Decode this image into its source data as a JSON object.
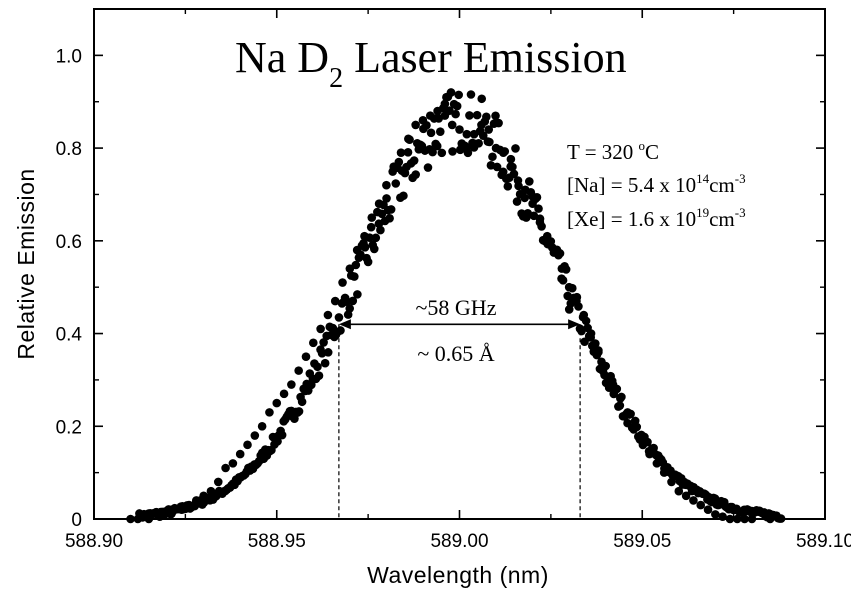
{
  "chart_data": {
    "type": "scatter",
    "title": {
      "main": "Na D",
      "sub": "2",
      "rest": " Laser Emission"
    },
    "xlabel": "Wavelength (nm)",
    "ylabel": "Relative Emission",
    "xlim": [
      588.9,
      589.1
    ],
    "ylim": [
      0,
      1.1
    ],
    "xticks": [
      "588.90",
      "588.95",
      "589.00",
      "589.05",
      "589.10"
    ],
    "xtick_values": [
      588.9,
      588.95,
      589.0,
      589.05,
      589.1
    ],
    "yticks": [
      "0",
      "0.2",
      "0.4",
      "0.6",
      "0.8",
      "1.0"
    ],
    "ytick_values": [
      0,
      0.2,
      0.4,
      0.6,
      0.8,
      1.0
    ],
    "grid": false,
    "annotations": {
      "temperature": {
        "text": "T = 320 ",
        "sup": "o",
        "tail": "C"
      },
      "na_density": {
        "text": "[Na] = 5.4 x 10",
        "sup": "14",
        "tail": "cm",
        "sup2": "-3"
      },
      "xe_density": {
        "text": "[Xe] = 1.6 x 10",
        "sup": "19",
        "tail": "cm",
        "sup2": "-3"
      },
      "fwhm_ghz": "~58 GHz",
      "fwhm_angstrom": "~ 0.65 Å",
      "fwhm_left_x": 588.967,
      "fwhm_right_x": 589.033,
      "fwhm_y": 0.42
    },
    "series": [
      {
        "marker_color": "#000000",
        "profile": {
          "center": 589.0,
          "peak": 0.86,
          "fwhm": 0.066
        },
        "x": [
          588.9,
          588.905,
          588.91,
          588.915,
          588.918,
          588.921,
          588.924,
          588.926,
          588.928,
          588.93,
          588.932,
          588.934,
          588.936,
          588.938,
          588.94,
          588.942,
          588.944,
          588.946,
          588.948,
          588.95,
          588.952,
          588.954,
          588.956,
          588.958,
          588.96,
          588.962,
          588.964,
          588.966,
          588.968,
          588.97,
          588.972,
          588.974,
          588.976,
          588.978,
          588.98,
          588.982,
          588.984,
          588.986,
          588.988,
          588.99,
          588.992,
          588.994,
          588.996,
          588.998,
          589.0,
          589.002,
          589.004,
          589.006,
          589.008,
          589.01,
          589.012,
          589.014,
          589.016,
          589.018,
          589.02,
          589.022,
          589.024,
          589.026,
          589.028,
          589.03,
          589.032,
          589.034,
          589.036,
          589.038,
          589.04,
          589.042,
          589.044,
          589.046,
          589.048,
          589.05,
          589.052,
          589.054,
          589.056,
          589.058,
          589.06,
          589.062,
          589.064,
          589.066,
          589.068,
          589.07,
          589.072,
          589.074,
          589.076,
          589.078,
          589.08,
          589.085,
          589.09
        ],
        "y": [
          0.0,
          0.0,
          0.0,
          0.0,
          0.005,
          0.01,
          0.02,
          0.03,
          0.04,
          0.05,
          0.06,
          0.08,
          0.11,
          0.12,
          0.14,
          0.16,
          0.18,
          0.2,
          0.23,
          0.25,
          0.27,
          0.29,
          0.32,
          0.35,
          0.38,
          0.41,
          0.44,
          0.47,
          0.51,
          0.54,
          0.58,
          0.61,
          0.65,
          0.68,
          0.72,
          0.76,
          0.79,
          0.82,
          0.85,
          0.86,
          0.87,
          0.88,
          0.87,
          0.85,
          0.84,
          0.83,
          0.83,
          0.85,
          0.84,
          0.8,
          0.79,
          0.76,
          0.73,
          0.71,
          0.68,
          0.64,
          0.61,
          0.58,
          0.54,
          0.5,
          0.47,
          0.44,
          0.4,
          0.36,
          0.33,
          0.29,
          0.26,
          0.23,
          0.2,
          0.17,
          0.14,
          0.12,
          0.1,
          0.08,
          0.06,
          0.05,
          0.04,
          0.03,
          0.02,
          0.01,
          0.005,
          0.0,
          0.0,
          0.0,
          0.0,
          0.0,
          0.0
        ]
      }
    ]
  }
}
